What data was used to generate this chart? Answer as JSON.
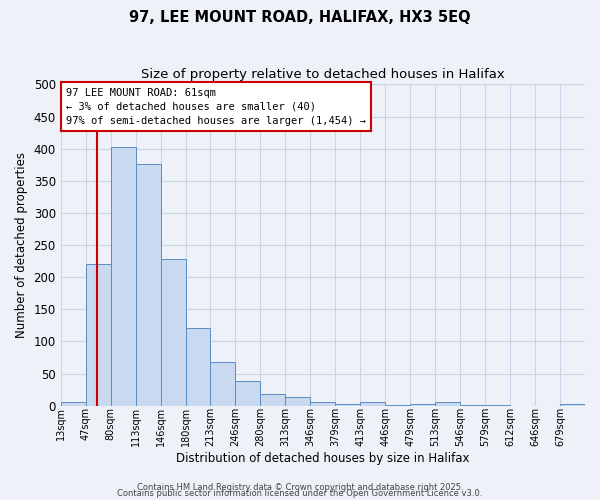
{
  "title": "97, LEE MOUNT ROAD, HALIFAX, HX3 5EQ",
  "subtitle": "Size of property relative to detached houses in Halifax",
  "xlabel": "Distribution of detached houses by size in Halifax",
  "ylabel": "Number of detached properties",
  "bins": [
    "13sqm",
    "47sqm",
    "80sqm",
    "113sqm",
    "146sqm",
    "180sqm",
    "213sqm",
    "246sqm",
    "280sqm",
    "313sqm",
    "346sqm",
    "379sqm",
    "413sqm",
    "446sqm",
    "479sqm",
    "513sqm",
    "546sqm",
    "579sqm",
    "612sqm",
    "646sqm",
    "679sqm"
  ],
  "values": [
    5,
    221,
    402,
    376,
    229,
    121,
    68,
    39,
    18,
    14,
    5,
    2,
    6,
    1,
    2,
    6,
    1,
    1,
    0,
    0,
    3
  ],
  "bar_facecolor": "#c9d9ef",
  "bar_edgecolor": "#5b8ec4",
  "property_bin_index": 1.45,
  "red_line_color": "#cc0000",
  "annotation_text": "97 LEE MOUNT ROAD: 61sqm\n← 3% of detached houses are smaller (40)\n97% of semi-detached houses are larger (1,454) →",
  "annotation_box_color": "#cc0000",
  "annotation_bg": "#ffffff",
  "grid_color": "#c8d4e8",
  "bg_color": "#eef2f8",
  "ylim": [
    0,
    500
  ],
  "yticks": [
    0,
    50,
    100,
    150,
    200,
    250,
    300,
    350,
    400,
    450,
    500
  ],
  "footer1": "Contains HM Land Registry data © Crown copyright and database right 2025.",
  "footer2": "Contains public sector information licensed under the Open Government Licence v3.0."
}
